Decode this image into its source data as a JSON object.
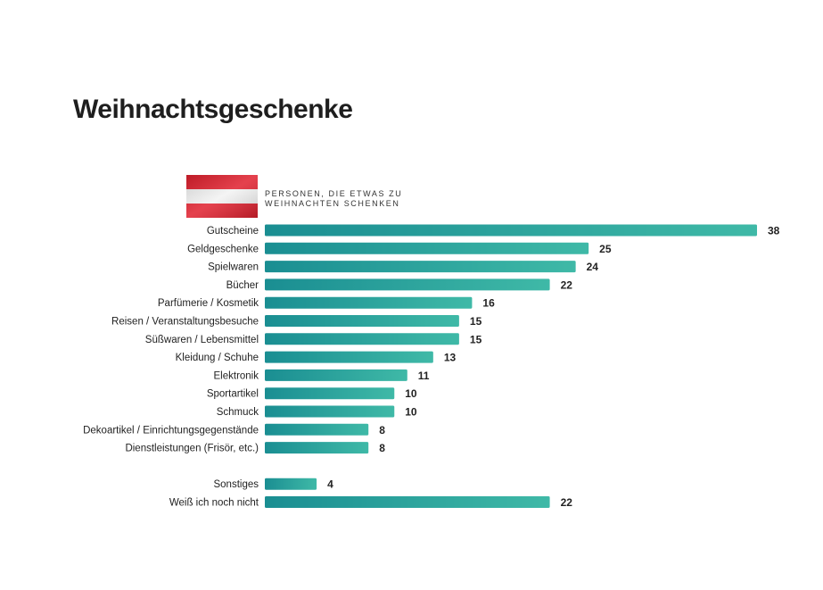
{
  "chart_data": {
    "type": "bar",
    "orientation": "horizontal",
    "title": "Weihnachtsgeschenke",
    "subtitle": "PERSONEN, DIE ETWAS ZU WEIHNACHTEN SCHENKEN",
    "categories": [
      "Gutscheine",
      "Geldgeschenke",
      "Spielwaren",
      "Bücher",
      "Parfümerie / Kosmetik",
      "Reisen / Veranstaltungsbesuche",
      "Süßwaren / Lebensmittel",
      "Kleidung / Schuhe",
      "Elektronik",
      "Sportartikel",
      "Schmuck",
      "Dekoartikel / Einrichtungsgegenstände",
      "Dienstleistungen (Frisör, etc.)",
      "Sonstiges",
      "Weiß ich noch nicht"
    ],
    "values": [
      38,
      25,
      24,
      22,
      16,
      15,
      15,
      13,
      11,
      10,
      10,
      8,
      8,
      4,
      22
    ],
    "group_gap_before_index": 13,
    "xlim": [
      0,
      38
    ],
    "grid": false,
    "colors": {
      "bar_start": "#1a8e92",
      "bar_end": "#3fb9a7"
    }
  }
}
